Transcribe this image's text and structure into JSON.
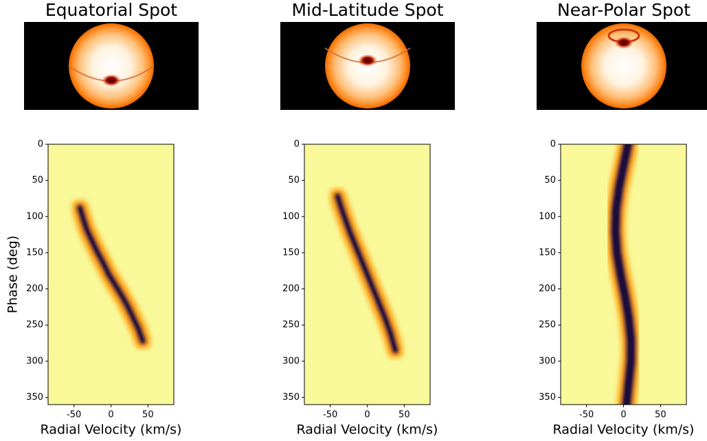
{
  "chart_data": [
    {
      "type": "heatmap",
      "title": "Equatorial Spot",
      "xlabel": "Radial Velocity (km/s)",
      "ylabel": "Phase (deg)",
      "xlim": [
        -85,
        85
      ],
      "xticks": [
        -50,
        0,
        50
      ],
      "ylim": [
        360,
        0
      ],
      "yticks": [
        0,
        50,
        100,
        150,
        200,
        250,
        300,
        350
      ],
      "background": "#f9f99a",
      "color": "#1f0a3a",
      "series": [
        {
          "x": [
            -42,
            -37,
            -32,
            -25,
            -18,
            -10,
            -3,
            6,
            15,
            23,
            30,
            37,
            43
          ],
          "y": [
            88,
            105,
            120,
            135,
            150,
            165,
            180,
            195,
            210,
            225,
            240,
            255,
            272
          ]
        }
      ]
    },
    {
      "type": "heatmap",
      "title": "Mid-Latitude Spot",
      "xlabel": "Radial Velocity (km/s)",
      "xlim": [
        -85,
        85
      ],
      "xticks": [
        -50,
        0,
        50
      ],
      "ylim": [
        360,
        0
      ],
      "yticks": [
        0,
        50,
        100,
        150,
        200,
        250,
        300,
        350
      ],
      "background": "#f9f99a",
      "color": "#1f0a3a",
      "series": [
        {
          "x": [
            -40,
            -36,
            -31,
            -24,
            -16,
            -8,
            0,
            8,
            16,
            24,
            31,
            38
          ],
          "y": [
            72,
            85,
            100,
            120,
            140,
            160,
            180,
            200,
            220,
            240,
            260,
            285
          ]
        }
      ]
    },
    {
      "type": "heatmap",
      "title": "Near-Polar Spot",
      "xlabel": "Radial Velocity (km/s)",
      "xlim": [
        -85,
        85
      ],
      "xticks": [
        -50,
        0,
        50
      ],
      "ylim": [
        360,
        0
      ],
      "yticks": [
        0,
        50,
        100,
        150,
        200,
        250,
        300,
        350
      ],
      "background": "#f9f99a",
      "color": "#1f0a3a",
      "series": [
        {
          "x": [
            6,
            0,
            -6,
            -10,
            -11,
            -9,
            -4,
            2,
            7,
            10,
            10,
            7,
            4
          ],
          "y": [
            0,
            30,
            60,
            90,
            120,
            150,
            180,
            210,
            240,
            270,
            300,
            330,
            360
          ]
        }
      ]
    }
  ]
}
